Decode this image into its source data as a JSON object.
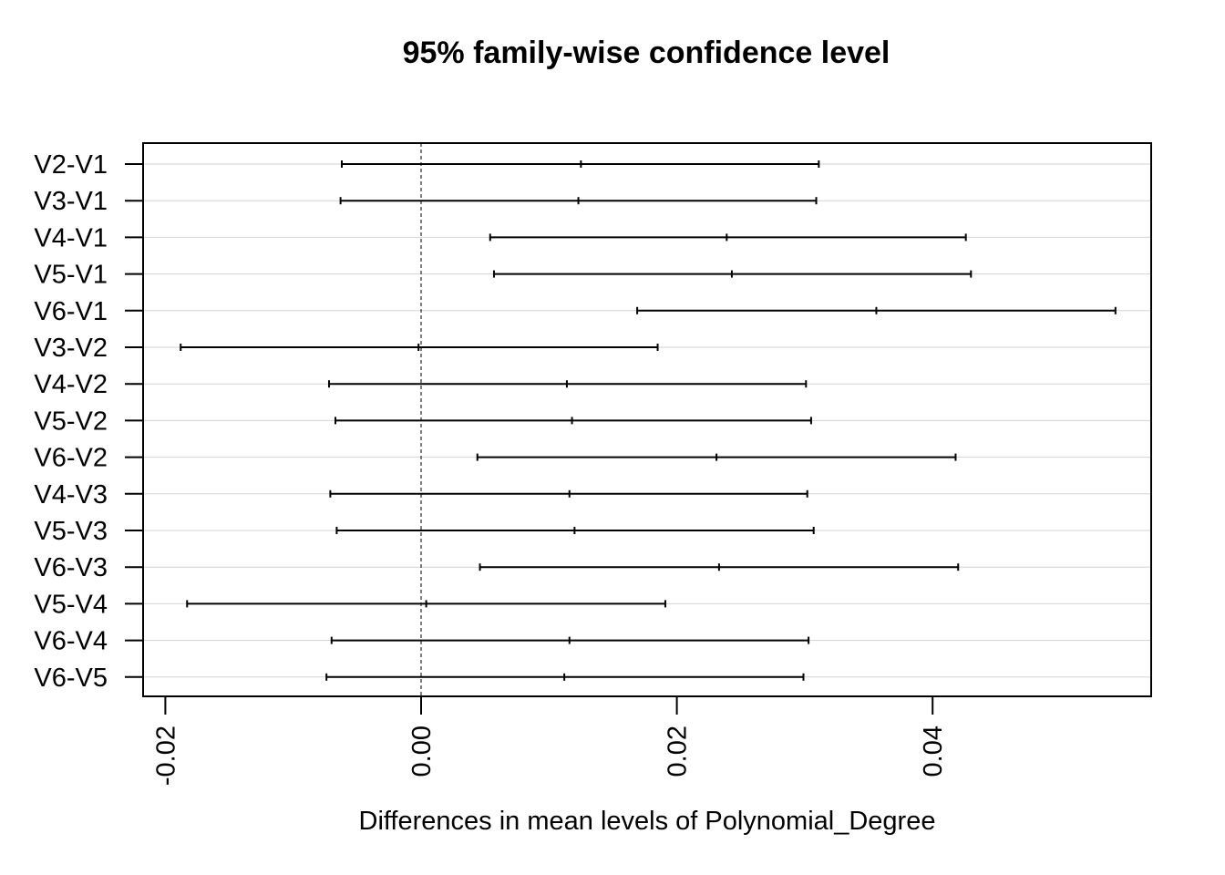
{
  "chart_data": {
    "type": "errorbar",
    "title": "95% family-wise confidence level",
    "xlabel": "Differences in mean levels of Polynomial_Degree",
    "ylabel": "",
    "xlim": [
      -0.0219,
      0.0571
    ],
    "x_ticks": [
      -0.02,
      0.0,
      0.02,
      0.04
    ],
    "x_tick_labels": [
      "-0.02",
      "0.00",
      "0.02",
      "0.04"
    ],
    "reference_line": 0,
    "grid": "horizontal",
    "categories": [
      "V2-V1",
      "V3-V1",
      "V4-V1",
      "V5-V1",
      "V6-V1",
      "V3-V2",
      "V4-V2",
      "V5-V2",
      "V6-V2",
      "V4-V3",
      "V5-V3",
      "V6-V3",
      "V5-V4",
      "V6-V4",
      "V6-V5"
    ],
    "series": [
      {
        "lower": [
          -0.0062,
          -0.0063,
          0.0054,
          0.0057,
          0.0169,
          -0.0188,
          -0.0072,
          -0.0067,
          0.0044,
          -0.0071,
          -0.0066,
          0.0046,
          -0.0183,
          -0.007,
          -0.0074
        ],
        "estimate": [
          0.0125,
          0.0123,
          0.0239,
          0.0243,
          0.0356,
          -0.0002,
          0.0114,
          0.0118,
          0.0231,
          0.0116,
          0.012,
          0.0233,
          0.0004,
          0.0116,
          0.0112
        ],
        "upper": [
          0.0311,
          0.0309,
          0.0426,
          0.043,
          0.0543,
          0.0185,
          0.0301,
          0.0305,
          0.0418,
          0.0302,
          0.0307,
          0.042,
          0.0191,
          0.0303,
          0.0299
        ]
      }
    ]
  }
}
